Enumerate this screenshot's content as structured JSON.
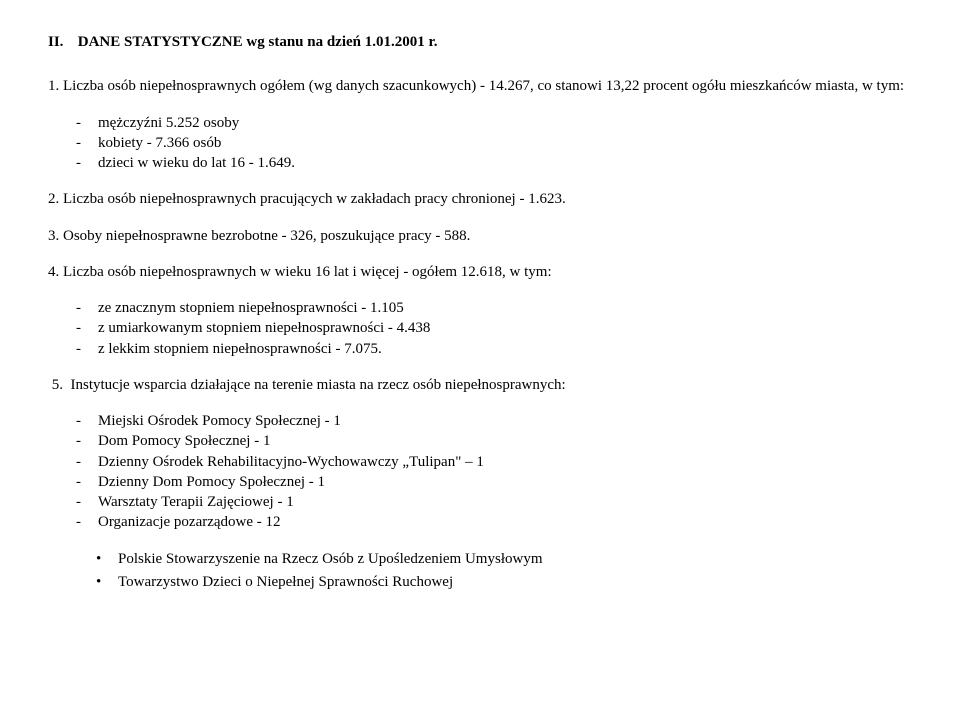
{
  "heading": {
    "roman": "II.",
    "title": "DANE  STATYSTYCZNE  wg stanu na dzień 1.01.2001 r."
  },
  "p1": {
    "num": "1.",
    "text": "Liczba osób niepełnosprawnych ogółem  (wg danych szacunkowych)  -  14.267, co stanowi 13,22 procent ogółu mieszkańców miasta, w tym:"
  },
  "p1_list": {
    "a": "mężczyźni  5.252 osoby",
    "b": "kobiety   -   7.366 osób",
    "c": "dzieci w wieku do lat 16  -  1.649."
  },
  "p2": {
    "num": "2.",
    "text": "Liczba osób niepełnosprawnych pracujących w zakładach pracy chronionej  -  1.623."
  },
  "p3": {
    "num": "3.",
    "text": "Osoby niepełnosprawne bezrobotne  -  326,  poszukujące pracy  -  588."
  },
  "p4": {
    "num": "4.",
    "text": "Liczba osób niepełnosprawnych w wieku 16 lat i więcej  -  ogółem 12.618, w tym:"
  },
  "p4_list": {
    "a": "ze znacznym stopniem niepełnosprawności  -  1.105",
    "b": "z umiarkowanym stopniem niepełnosprawności  -  4.438",
    "c": "z lekkim stopniem niepełnosprawności  -  7.075."
  },
  "p5": {
    "num": "5.",
    "text": "Instytucje wsparcia działające na terenie miasta na rzecz osób niepełnosprawnych:"
  },
  "p5_list": {
    "a": "Miejski Ośrodek Pomocy Społecznej  -  1",
    "b": "Dom Pomocy Społecznej  -  1",
    "c": "Dzienny Ośrodek Rehabilitacyjno-Wychowawczy „Tulipan\" – 1",
    "d": "Dzienny Dom Pomocy Społecznej - 1",
    "e": "Warsztaty Terapii Zajęciowej - 1",
    "f": "Organizacje pozarządowe  -  12"
  },
  "p5_bullets": {
    "a": "Polskie Stowarzyszenie na Rzecz Osób z Upośledzeniem Umysłowym",
    "b": "Towarzystwo Dzieci o Niepełnej Sprawności Ruchowej"
  },
  "dash": "-",
  "bullet": "•"
}
